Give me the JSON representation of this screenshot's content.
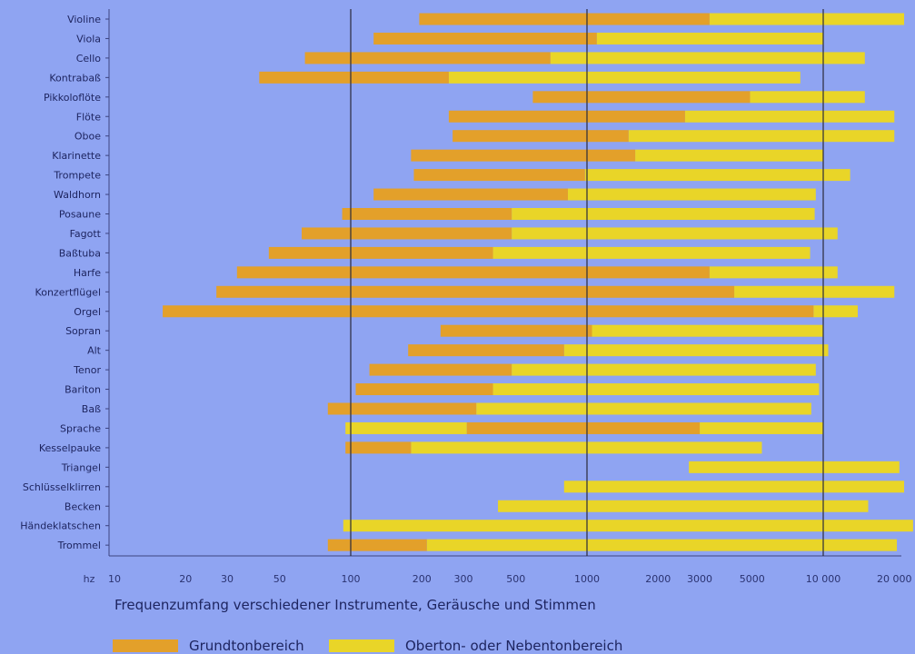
{
  "chart_data": {
    "type": "bar",
    "orientation": "horizontal",
    "x_scale": "log",
    "xlim": [
      10,
      25000
    ],
    "x_unit_label": "hz",
    "x_ticks": [
      10,
      20,
      30,
      50,
      100,
      200,
      300,
      500,
      1000,
      2000,
      3000,
      5000,
      10000,
      20000
    ],
    "x_tick_labels": [
      "10",
      "20",
      "30",
      "50",
      "100",
      "200",
      "300",
      "500",
      "1000",
      "2000",
      "3000",
      "5000",
      "10 000",
      "20 000"
    ],
    "reference_lines": [
      100,
      1000,
      10000
    ],
    "caption": "Frequenzumfang verschiedener Instrumente, Geräusche und Stimmen",
    "colors": {
      "background": "#8fa4f2",
      "grundton": "#e3a02a",
      "oberton": "#e9d528",
      "text": "#1e2560"
    },
    "series": [
      {
        "name": "Grundtonbereich",
        "color": "#e3a02a"
      },
      {
        "name": "Oberton- oder Nebentonbereich",
        "color": "#e9d528"
      }
    ],
    "categories": [
      {
        "label": "Violine",
        "grundton": [
          195,
          3300
        ],
        "oberton": [
          3300,
          22000
        ]
      },
      {
        "label": "Viola",
        "grundton": [
          125,
          1100
        ],
        "oberton": [
          1100,
          10000
        ]
      },
      {
        "label": "Cello",
        "grundton": [
          64,
          700
        ],
        "oberton": [
          700,
          15000
        ]
      },
      {
        "label": "Kontrabaß",
        "grundton": [
          41,
          260
        ],
        "oberton": [
          260,
          8000
        ]
      },
      {
        "label": "Pikkoloflöte",
        "grundton": [
          590,
          4900
        ],
        "oberton": [
          4900,
          15000
        ]
      },
      {
        "label": "Flöte",
        "grundton": [
          260,
          2600
        ],
        "oberton": [
          2600,
          20000
        ]
      },
      {
        "label": "Oboe",
        "grundton": [
          270,
          1500
        ],
        "oberton": [
          1500,
          20000
        ]
      },
      {
        "label": "Klarinette",
        "grundton": [
          180,
          1600
        ],
        "oberton": [
          1600,
          10000
        ]
      },
      {
        "label": "Trompete",
        "grundton": [
          185,
          980
        ],
        "oberton": [
          980,
          13000
        ]
      },
      {
        "label": "Waldhorn",
        "grundton": [
          125,
          830
        ],
        "oberton": [
          830,
          9300
        ]
      },
      {
        "label": "Posaune",
        "grundton": [
          92,
          480
        ],
        "oberton": [
          480,
          9200
        ]
      },
      {
        "label": "Fagott",
        "grundton": [
          62,
          480
        ],
        "oberton": [
          480,
          11500
        ]
      },
      {
        "label": "Baßtuba",
        "grundton": [
          45,
          400
        ],
        "oberton": [
          400,
          8800
        ]
      },
      {
        "label": "Harfe",
        "grundton": [
          33,
          3300
        ],
        "oberton": [
          3300,
          11500
        ]
      },
      {
        "label": "Konzertflügel",
        "grundton": [
          27,
          4200
        ],
        "oberton": [
          4200,
          20000
        ]
      },
      {
        "label": "Orgel",
        "grundton": [
          16,
          9100
        ],
        "oberton": [
          9100,
          14000
        ]
      },
      {
        "label": "Sopran",
        "grundton": [
          240,
          1050
        ],
        "oberton": [
          1050,
          10000
        ]
      },
      {
        "label": "Alt",
        "grundton": [
          175,
          800
        ],
        "oberton": [
          800,
          10500
        ]
      },
      {
        "label": "Tenor",
        "grundton": [
          120,
          480
        ],
        "oberton": [
          480,
          9300
        ]
      },
      {
        "label": "Bariton",
        "grundton": [
          105,
          400
        ],
        "oberton": [
          400,
          9600
        ]
      },
      {
        "label": "Baß",
        "grundton": [
          80,
          340
        ],
        "oberton": [
          340,
          8900
        ]
      },
      {
        "label": "Sprache",
        "grundton": [
          310,
          3000
        ],
        "oberton": [
          [
            95,
            310
          ],
          [
            3000,
            10000
          ]
        ]
      },
      {
        "label": "Kesselpauke",
        "grundton": [
          95,
          180
        ],
        "oberton": [
          180,
          5500
        ]
      },
      {
        "label": "Triangel",
        "grundton": null,
        "oberton": [
          2700,
          21000
        ]
      },
      {
        "label": "Schlüsselklirren",
        "grundton": null,
        "oberton": [
          800,
          22000
        ]
      },
      {
        "label": "Becken",
        "grundton": null,
        "oberton": [
          420,
          15500
        ]
      },
      {
        "label": "Händeklatschen",
        "grundton": null,
        "oberton": [
          93,
          24000
        ]
      },
      {
        "label": "Trommel",
        "grundton": [
          80,
          210
        ],
        "oberton": [
          210,
          20500
        ]
      }
    ]
  }
}
